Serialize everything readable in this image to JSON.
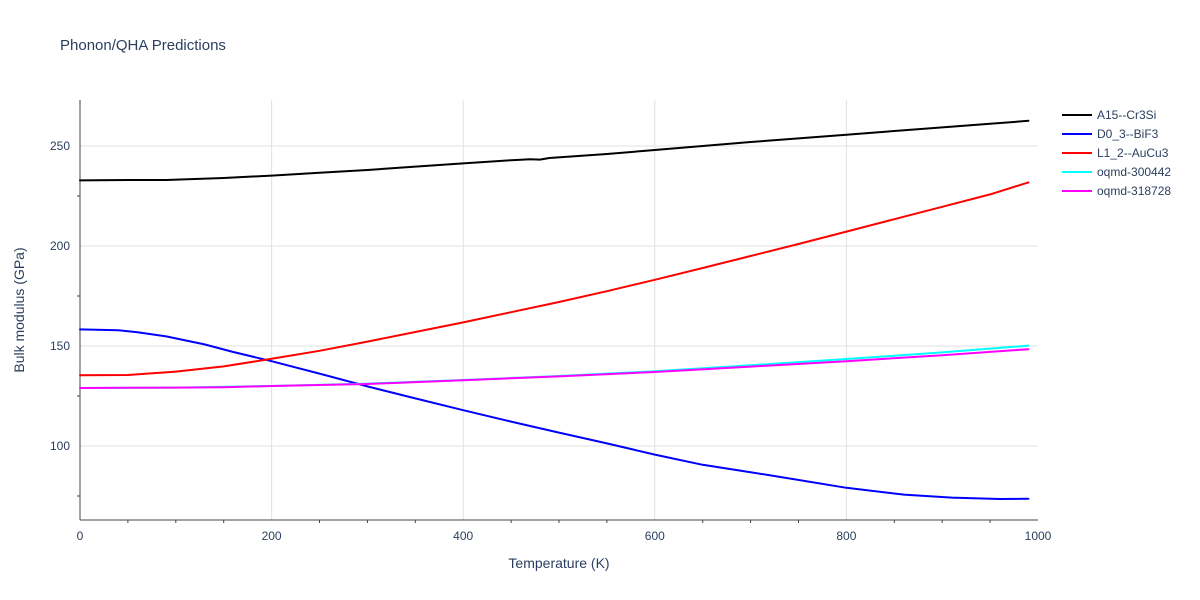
{
  "chart_data": {
    "type": "line",
    "title": "Phonon/QHA Predictions",
    "xlabel": "Temperature (K)",
    "ylabel": "Bulk modulus (GPa)",
    "xlim": [
      0,
      1000
    ],
    "ylim": [
      63,
      273
    ],
    "x_ticks": [
      0,
      200,
      400,
      600,
      800,
      1000
    ],
    "y_ticks": [
      100,
      150,
      200,
      250
    ],
    "grid": true,
    "legend_position": "top-right",
    "series": [
      {
        "name": "A15--Cr3Si",
        "color": "#000000",
        "points": [
          [
            0,
            232.8
          ],
          [
            50,
            233.0
          ],
          [
            90,
            233.0
          ],
          [
            150,
            234.0
          ],
          [
            200,
            235.2
          ],
          [
            250,
            236.6
          ],
          [
            300,
            238.0
          ],
          [
            350,
            239.7
          ],
          [
            400,
            241.3
          ],
          [
            450,
            242.9
          ],
          [
            470,
            243.4
          ],
          [
            480,
            243.2
          ],
          [
            490,
            244.0
          ],
          [
            550,
            246.0
          ],
          [
            600,
            248.0
          ],
          [
            650,
            250.0
          ],
          [
            700,
            252.0
          ],
          [
            750,
            253.8
          ],
          [
            800,
            255.6
          ],
          [
            850,
            257.5
          ],
          [
            900,
            259.3
          ],
          [
            950,
            261.1
          ],
          [
            990,
            262.6
          ]
        ]
      },
      {
        "name": "D0_3--BiF3",
        "color": "#0000ff",
        "points": [
          [
            0,
            158.3
          ],
          [
            40,
            157.9
          ],
          [
            60,
            156.9
          ],
          [
            90,
            154.8
          ],
          [
            130,
            150.8
          ],
          [
            160,
            147.0
          ],
          [
            200,
            142.4
          ],
          [
            250,
            136.2
          ],
          [
            300,
            129.8
          ],
          [
            350,
            123.8
          ],
          [
            400,
            117.9
          ],
          [
            450,
            112.2
          ],
          [
            500,
            106.7
          ],
          [
            550,
            101.3
          ],
          [
            600,
            95.7
          ],
          [
            650,
            90.6
          ],
          [
            700,
            86.9
          ],
          [
            740,
            83.8
          ],
          [
            800,
            79.1
          ],
          [
            860,
            75.7
          ],
          [
            910,
            74.2
          ],
          [
            960,
            73.5
          ],
          [
            990,
            73.6
          ]
        ]
      },
      {
        "name": "L1_2--AuCu3",
        "color": "#ff0000",
        "points": [
          [
            0,
            135.4
          ],
          [
            50,
            135.5
          ],
          [
            100,
            137.2
          ],
          [
            150,
            139.8
          ],
          [
            200,
            143.6
          ],
          [
            250,
            147.6
          ],
          [
            300,
            152.2
          ],
          [
            350,
            157.0
          ],
          [
            400,
            161.8
          ],
          [
            450,
            166.9
          ],
          [
            500,
            172.0
          ],
          [
            550,
            177.4
          ],
          [
            600,
            183.1
          ],
          [
            650,
            189.0
          ],
          [
            700,
            195.0
          ],
          [
            750,
            201.0
          ],
          [
            800,
            207.2
          ],
          [
            850,
            213.4
          ],
          [
            900,
            219.6
          ],
          [
            950,
            225.8
          ],
          [
            990,
            231.8
          ]
        ]
      },
      {
        "name": "oqmd-300442",
        "color": "#00ffff",
        "points": [
          [
            0,
            129.0
          ],
          [
            100,
            129.2
          ],
          [
            200,
            130.0
          ],
          [
            300,
            131.2
          ],
          [
            400,
            133.0
          ],
          [
            500,
            135.0
          ],
          [
            600,
            137.4
          ],
          [
            700,
            140.4
          ],
          [
            800,
            143.5
          ],
          [
            900,
            146.8
          ],
          [
            990,
            150.2
          ]
        ]
      },
      {
        "name": "oqmd-318728",
        "color": "#ff00ff",
        "points": [
          [
            0,
            129.0
          ],
          [
            100,
            129.2
          ],
          [
            150,
            129.4
          ],
          [
            200,
            130.0
          ],
          [
            300,
            131.0
          ],
          [
            400,
            132.9
          ],
          [
            500,
            134.8
          ],
          [
            600,
            137.0
          ],
          [
            700,
            139.7
          ],
          [
            800,
            142.4
          ],
          [
            900,
            145.4
          ],
          [
            990,
            148.4
          ]
        ]
      }
    ]
  }
}
